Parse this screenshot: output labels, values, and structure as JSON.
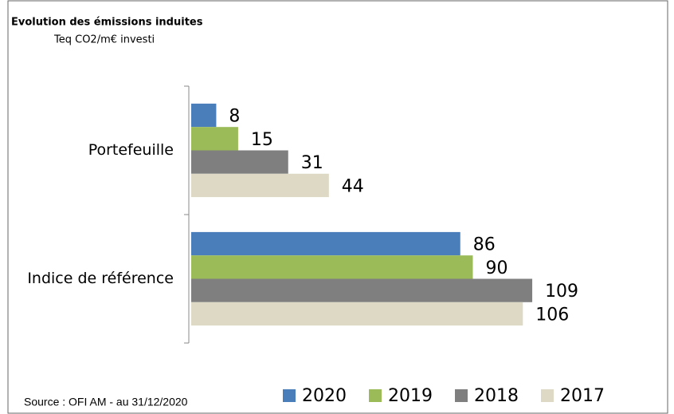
{
  "chart_data": {
    "type": "hbar",
    "title": "Evolution des émissions induites",
    "subtitle": "Teq CO2/m€ investi",
    "source": "Source : OFI AM - au 31/12/2020",
    "categories": [
      "Portefeuille",
      "Indice de référence"
    ],
    "series": [
      {
        "name": "2020",
        "color": "#4a7ebb",
        "values": [
          8,
          86
        ]
      },
      {
        "name": "2019",
        "color": "#9bbb59",
        "values": [
          15,
          90
        ]
      },
      {
        "name": "2018",
        "color": "#7f7f7f",
        "values": [
          31,
          109
        ]
      },
      {
        "name": "2017",
        "color": "#ddd9c4",
        "values": [
          44,
          106
        ]
      }
    ],
    "xlim": [
      0,
      110
    ],
    "legend": "bottom"
  }
}
